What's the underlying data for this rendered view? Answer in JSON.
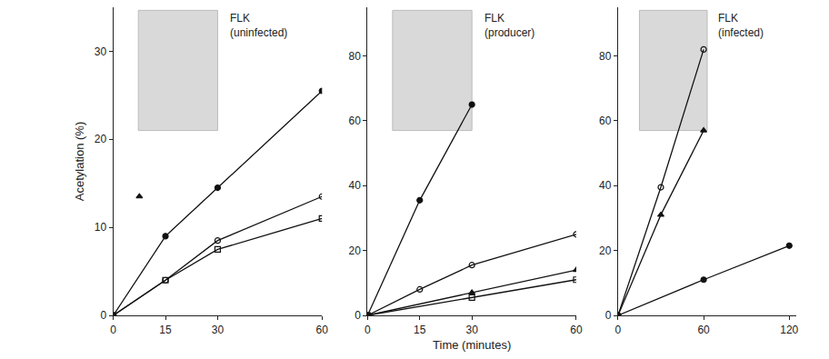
{
  "chart_data": [
    {
      "type": "line",
      "title": "FLK (uninfected)",
      "ylabel": "Acetylation (%)",
      "xlim": [
        0,
        60
      ],
      "xticks": [
        0,
        15,
        30,
        60
      ],
      "ylim": [
        0,
        35
      ],
      "yticks": [
        0,
        10,
        20,
        30
      ],
      "grid": false,
      "series": [
        {
          "x": [
            0,
            15,
            30,
            60
          ],
          "values": [
            0,
            9,
            14.5,
            25.5
          ],
          "color": "#111111",
          "marker": "filled_circle",
          "line_style": "solid"
        },
        {
          "x": [
            0,
            15,
            30,
            60
          ],
          "values": [
            0,
            4,
            8.5,
            13.5
          ],
          "color": "#111111",
          "marker": "open_circle",
          "line_style": "solid"
        },
        {
          "x": [
            0,
            15,
            30,
            60
          ],
          "values": [
            0,
            4,
            7.5,
            11
          ],
          "color": "#111111",
          "marker": "open_square",
          "line_style": "solid"
        },
        {
          "type": "scatter",
          "x": [
            7.5
          ],
          "values": [
            13.5
          ],
          "color": "#111111",
          "marker": "filled_triangle"
        }
      ]
    },
    {
      "type": "line",
      "title": "FLK (producer)",
      "xlabel": "Time (minutes)",
      "xlim": [
        0,
        60
      ],
      "xticks": [
        0,
        15,
        30,
        60
      ],
      "ylim": [
        0,
        95
      ],
      "yticks": [
        0,
        20,
        40,
        60,
        80
      ],
      "grid": false,
      "series": [
        {
          "x": [
            0,
            15,
            30
          ],
          "values": [
            0,
            35.5,
            65
          ],
          "color": "#111111",
          "marker": "filled_circle",
          "line_style": "solid"
        },
        {
          "x": [
            0,
            15,
            30,
            60
          ],
          "values": [
            0,
            8,
            15.5,
            25
          ],
          "color": "#111111",
          "marker": "open_circle",
          "line_style": "solid"
        },
        {
          "x": [
            0,
            30,
            60
          ],
          "values": [
            0,
            7,
            14
          ],
          "color": "#111111",
          "marker": "filled_triangle",
          "line_style": "solid"
        },
        {
          "x": [
            0,
            30,
            60
          ],
          "values": [
            0,
            5.5,
            11
          ],
          "color": "#111111",
          "marker": "open_square",
          "line_style": "solid"
        }
      ]
    },
    {
      "type": "line",
      "title": "FLK (infected)",
      "xlim": [
        0,
        125
      ],
      "xticks": [
        0,
        60,
        120
      ],
      "ylim": [
        0,
        95
      ],
      "yticks": [
        0,
        20,
        40,
        60,
        80
      ],
      "grid": false,
      "series": [
        {
          "x": [
            0,
            30,
            60
          ],
          "values": [
            0,
            39.5,
            82
          ],
          "color": "#111111",
          "marker": "open_circle",
          "line_style": "solid"
        },
        {
          "x": [
            0,
            30,
            60
          ],
          "values": [
            0,
            31,
            57
          ],
          "color": "#111111",
          "marker": "filled_triangle",
          "line_style": "solid"
        },
        {
          "x": [
            0,
            60,
            120
          ],
          "values": [
            0,
            11,
            21.5
          ],
          "color": "#111111",
          "marker": "filled_circle",
          "line_style": "solid"
        }
      ]
    }
  ]
}
